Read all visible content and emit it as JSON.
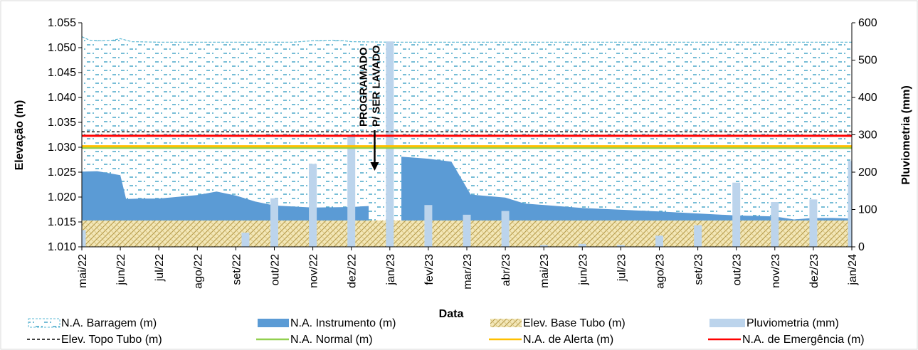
{
  "chart_data": {
    "type": "area",
    "xlabel": "Data",
    "ylabel": "Elevação (m)",
    "y2label": "Pluviometria (mm)",
    "ylim": [
      1.01,
      1.055
    ],
    "y2lim": [
      0,
      600
    ],
    "yticks": [
      "1.010",
      "1.015",
      "1.020",
      "1.025",
      "1.030",
      "1.035",
      "1.040",
      "1.045",
      "1.050",
      "1.055"
    ],
    "y2ticks": [
      "0",
      "100",
      "200",
      "300",
      "400",
      "500",
      "600"
    ],
    "categories": [
      "mai/22",
      "jun/22",
      "jul/22",
      "ago/22",
      "set/22",
      "out/22",
      "nov/22",
      "dez/22",
      "jan/23",
      "fev/23",
      "mar/23",
      "abr/23",
      "mai/23",
      "jun/23",
      "jul/23",
      "ago/23",
      "set/23",
      "out/23",
      "nov/23",
      "dez/23",
      "jan/24"
    ],
    "annotation": [
      "PROGRAMADO",
      "P/ SER LAVADO"
    ],
    "series": [
      {
        "name": "N.A. Barragem (m)",
        "kind": "area",
        "color": "#5bb8d4",
        "points": [
          [
            0,
            1.0522
          ],
          [
            0.2,
            1.0515
          ],
          [
            0.5,
            1.0514
          ],
          [
            0.8,
            1.0515
          ],
          [
            1.0,
            1.0518
          ],
          [
            1.3,
            1.0512
          ],
          [
            2.0,
            1.0511
          ],
          [
            4.5,
            1.0511
          ],
          [
            5.5,
            1.0511
          ],
          [
            6.0,
            1.0514
          ],
          [
            6.5,
            1.0515
          ],
          [
            6.8,
            1.0514
          ],
          [
            7.0,
            1.0512
          ],
          [
            8.0,
            1.0511
          ],
          [
            20.3,
            1.0511
          ]
        ]
      },
      {
        "name": "N.A. Instrumento (m)",
        "kind": "area",
        "color": "#5b9bd5",
        "points": [
          [
            0,
            1.0251
          ],
          [
            0.4,
            1.0252
          ],
          [
            1.0,
            1.0244
          ],
          [
            1.15,
            1.0196
          ],
          [
            1.5,
            1.0197
          ],
          [
            2.0,
            1.0197
          ],
          [
            3.0,
            1.0204
          ],
          [
            3.5,
            1.0211
          ],
          [
            4.0,
            1.0203
          ],
          [
            4.5,
            1.0191
          ],
          [
            5.0,
            1.0183
          ],
          [
            6.0,
            1.0179
          ],
          [
            7.0,
            1.018
          ],
          [
            7.45,
            1.0182
          ],
          [
            7.45,
            1.0101
          ],
          [
            8.3,
            1.0101
          ],
          [
            8.3,
            1.0281
          ],
          [
            9.0,
            1.0277
          ],
          [
            9.6,
            1.0271
          ],
          [
            10.1,
            1.0205
          ],
          [
            11.0,
            1.0199
          ],
          [
            11.5,
            1.0187
          ],
          [
            13.0,
            1.0178
          ],
          [
            15.0,
            1.0171
          ],
          [
            17.0,
            1.0163
          ],
          [
            18.0,
            1.0161
          ],
          [
            18.5,
            1.0155
          ],
          [
            19.0,
            1.0158
          ],
          [
            19.5,
            1.0158
          ],
          [
            20.3,
            1.0156
          ]
        ]
      },
      {
        "name": "Elev. Base Tubo (m)",
        "kind": "area",
        "color": "#c8b46a",
        "value": 1.0153
      },
      {
        "name": "Pluviometria (mm)",
        "kind": "bar",
        "axis": "right",
        "color": "#bcd4ec",
        "bars": [
          [
            0.0,
            45
          ],
          [
            4.25,
            38
          ],
          [
            5.0,
            130
          ],
          [
            6.0,
            222
          ],
          [
            7.0,
            295
          ],
          [
            8.0,
            550
          ],
          [
            9.0,
            112
          ],
          [
            10.0,
            86
          ],
          [
            11.0,
            96
          ],
          [
            12.0,
            5
          ],
          [
            13.0,
            8
          ],
          [
            14.0,
            5
          ],
          [
            15.0,
            30
          ],
          [
            16.0,
            58
          ],
          [
            17.0,
            172
          ],
          [
            18.0,
            120
          ],
          [
            19.0,
            127
          ],
          [
            20.0,
            230
          ]
        ]
      },
      {
        "name": "Elev. Topo Tubo (m)",
        "kind": "line",
        "color": "#000000",
        "dash": true,
        "value": 1.0331
      },
      {
        "name": "N.A. Normal (m)",
        "kind": "line",
        "color": "#92d050",
        "value": 1.0299
      },
      {
        "name": "N.A. de Alerta (m)",
        "kind": "line",
        "color": "#ffc000",
        "value": 1.0302
      },
      {
        "name": "N.A. de Emergência (m)",
        "kind": "line",
        "color": "#ff0000",
        "value": 1.0323
      }
    ]
  }
}
